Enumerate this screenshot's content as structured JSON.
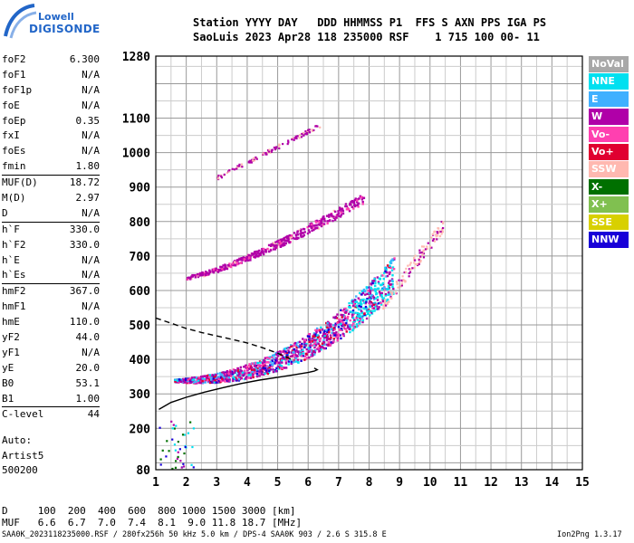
{
  "logo": {
    "line1": "Lowell",
    "line2": "DIGISONDE"
  },
  "header": {
    "row1": "Station YYYY DAY   DDD HHMMSS P1  FFS S AXN PPS IGA PS",
    "row2": "SaoLuis 2023 Apr28 118 235000 RSF    1 715 100 00- 11"
  },
  "params": [
    {
      "name": "foF2",
      "value": "6.300"
    },
    {
      "name": "foF1",
      "value": "N/A"
    },
    {
      "name": "foF1p",
      "value": "N/A"
    },
    {
      "name": "foE",
      "value": "N/A"
    },
    {
      "name": "foEp",
      "value": "0.35"
    },
    {
      "name": "fxI",
      "value": "N/A"
    },
    {
      "name": "foEs",
      "value": "N/A"
    },
    {
      "name": "fmin",
      "value": "1.80"
    },
    {
      "name": "MUF(D)",
      "value": "18.72",
      "sep": true
    },
    {
      "name": "M(D)",
      "value": "2.97"
    },
    {
      "name": "D",
      "value": "N/A"
    },
    {
      "name": "h`F",
      "value": "330.0",
      "sep": true
    },
    {
      "name": "h`F2",
      "value": "330.0"
    },
    {
      "name": "h`E",
      "value": "N/A"
    },
    {
      "name": "h`Es",
      "value": "N/A"
    },
    {
      "name": "hmF2",
      "value": "367.0",
      "sep": true
    },
    {
      "name": "hmF1",
      "value": "N/A"
    },
    {
      "name": "hmE",
      "value": "110.0"
    },
    {
      "name": "yF2",
      "value": "44.0"
    },
    {
      "name": "yF1",
      "value": "N/A"
    },
    {
      "name": "yE",
      "value": "20.0"
    },
    {
      "name": "B0",
      "value": "53.1"
    },
    {
      "name": "B1",
      "value": "1.00"
    },
    {
      "name": "C-level",
      "value": "44",
      "sep": true
    }
  ],
  "autoscale": {
    "line1": "Auto:",
    "line2": "Artist5",
    "line3": "500200"
  },
  "legend": [
    {
      "label": "NoVal",
      "color": "#a8a8a8"
    },
    {
      "label": "NNE",
      "color": "#00e0f0"
    },
    {
      "label": "E",
      "color": "#40b0ff"
    },
    {
      "label": "W",
      "color": "#b000a8"
    },
    {
      "label": "Vo-",
      "color": "#ff40b0"
    },
    {
      "label": "Vo+",
      "color": "#e00030"
    },
    {
      "label": "SSW",
      "color": "#ffb8b0"
    },
    {
      "label": "X-",
      "color": "#007000"
    },
    {
      "label": "X+",
      "color": "#80c050"
    },
    {
      "label": "SSE",
      "color": "#d8d000"
    },
    {
      "label": "NNW",
      "color": "#1800d8"
    }
  ],
  "footer": {
    "d_row": "D     100  200  400  600  800 1000 1500 3000 [km]",
    "muf_row": "MUF   6.6  6.7  7.0  7.4  8.1  9.0 11.8 18.7 [MHz]",
    "filename": "SAA0K_2023118235000.RSF / 280fx256h 50 kHz 5.0 km / DPS-4 SAA0K 903 / 2.6 S 315.8 E",
    "version": "Ion2Png 1.3.17"
  },
  "chart_data": {
    "type": "scatter",
    "xlim": [
      1,
      15
    ],
    "ylim": [
      80,
      1280
    ],
    "x_ticks": [
      1,
      2,
      3,
      4,
      5,
      6,
      7,
      8,
      9,
      10,
      11,
      12,
      13,
      14,
      15
    ],
    "y_ticks": [
      80,
      200,
      300,
      400,
      500,
      600,
      700,
      800,
      900,
      1000,
      1100,
      1280
    ],
    "grid": true,
    "traces": [
      {
        "x": [
          1.1,
          1.5,
          2.0,
          2.6,
          3.2,
          3.8,
          4.4,
          5.0,
          5.5,
          6.0,
          6.2,
          6.3,
          6.2
        ],
        "y": [
          255,
          275,
          290,
          305,
          318,
          330,
          340,
          348,
          355,
          362,
          366,
          370,
          375
        ],
        "style": "solid"
      },
      {
        "x": [
          1.0,
          1.5,
          2.0,
          2.5,
          3.0,
          3.5,
          4.0,
          4.5,
          5.0,
          5.5
        ],
        "y": [
          520,
          505,
          490,
          478,
          468,
          458,
          448,
          434,
          418,
          398
        ],
        "style": "dashed"
      }
    ],
    "clusters": [
      {
        "color": "#b000a8",
        "x0": 1.5,
        "x1": 8.7,
        "y0": 330,
        "y1": 640
      },
      {
        "color": "#ff40b0",
        "x0": 1.8,
        "x1": 8.5,
        "y0": 330,
        "y1": 560
      },
      {
        "color": "#00e0f0",
        "x0": 6.0,
        "x1": 9.3,
        "y0": 390,
        "y1": 560
      },
      {
        "color": "#b000a8",
        "x0": 2.0,
        "x1": 7.8,
        "y0": 640,
        "y1": 880
      },
      {
        "color": "#b000a8",
        "x0": 3.0,
        "x1": 6.2,
        "y0": 920,
        "y1": 1070
      },
      {
        "color": "#ffb8b0",
        "x0": 8.5,
        "x1": 10.4,
        "y0": 600,
        "y1": 800
      }
    ]
  }
}
